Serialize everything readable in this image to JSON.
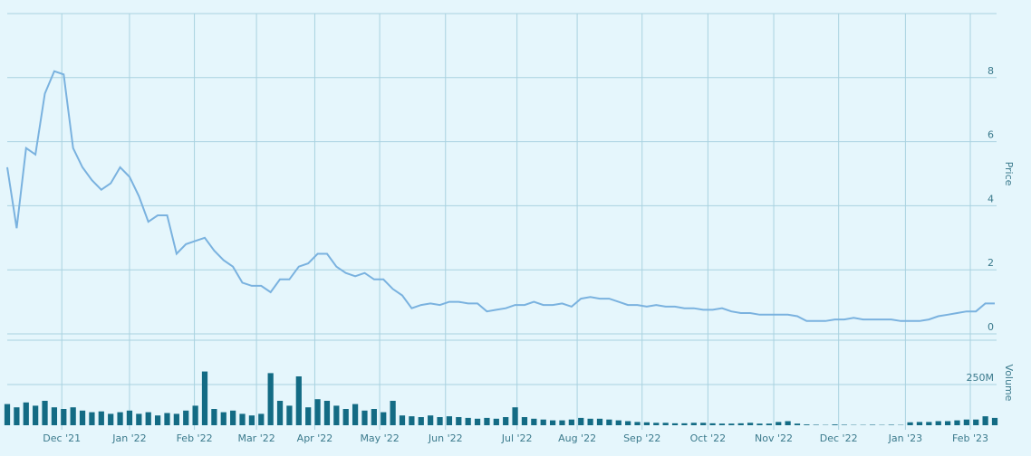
{
  "chart_data": [
    {
      "type": "line",
      "y_label": "Price",
      "color": "#7ab2df",
      "xlim": [
        0,
        105
      ],
      "ylim": [
        0,
        10
      ],
      "yticks": [
        0,
        2,
        4,
        6,
        8
      ],
      "grid": true,
      "values": [
        5.2,
        3.3,
        5.8,
        5.6,
        7.5,
        8.2,
        8.1,
        5.8,
        5.2,
        4.8,
        4.5,
        4.7,
        5.2,
        4.9,
        4.3,
        3.5,
        3.7,
        3.7,
        2.5,
        2.8,
        2.9,
        3.0,
        2.6,
        2.3,
        2.1,
        1.6,
        1.5,
        1.5,
        1.3,
        1.7,
        1.7,
        2.1,
        2.2,
        2.5,
        2.5,
        2.1,
        1.9,
        1.8,
        1.9,
        1.7,
        1.7,
        1.4,
        1.2,
        0.8,
        0.9,
        0.95,
        0.9,
        1.0,
        1.0,
        0.95,
        0.95,
        0.7,
        0.75,
        0.8,
        0.9,
        0.9,
        1.0,
        0.9,
        0.9,
        0.95,
        0.85,
        1.1,
        1.15,
        1.1,
        1.1,
        1.0,
        0.9,
        0.9,
        0.85,
        0.9,
        0.85,
        0.85,
        0.8,
        0.8,
        0.75,
        0.75,
        0.8,
        0.7,
        0.65,
        0.65,
        0.6,
        0.6,
        0.6,
        0.6,
        0.55,
        0.4,
        0.4,
        0.4,
        0.45,
        0.45,
        0.5,
        0.45,
        0.45,
        0.45,
        0.45,
        0.4,
        0.4,
        0.4,
        0.45,
        0.55,
        0.6,
        0.65,
        0.7,
        0.7,
        0.95,
        0.95
      ]
    },
    {
      "type": "bar",
      "y_label": "Volume",
      "color": "#136b84",
      "xlim": [
        0,
        105
      ],
      "ylim": [
        0,
        500000000
      ],
      "yticks": [
        {
          "value": 250000000,
          "label": "250M"
        }
      ],
      "grid": true,
      "xticks": [
        {
          "value": 5.8,
          "label": "Dec '21"
        },
        {
          "value": 13.0,
          "label": "Jan '22"
        },
        {
          "value": 19.9,
          "label": "Feb '22"
        },
        {
          "value": 26.5,
          "label": "Mar '22"
        },
        {
          "value": 32.7,
          "label": "Apr '22"
        },
        {
          "value": 39.6,
          "label": "May '22"
        },
        {
          "value": 46.6,
          "label": "Jun '22"
        },
        {
          "value": 54.2,
          "label": "Jul '22"
        },
        {
          "value": 60.6,
          "label": "Aug '22"
        },
        {
          "value": 67.5,
          "label": "Sep '22"
        },
        {
          "value": 74.5,
          "label": "Oct '22"
        },
        {
          "value": 81.5,
          "label": "Nov '22"
        },
        {
          "value": 88.4,
          "label": "Dec '22"
        },
        {
          "value": 95.5,
          "label": "Jan '23"
        },
        {
          "value": 102.4,
          "label": "Feb '23"
        }
      ],
      "values": [
        130000000,
        110000000,
        140000000,
        120000000,
        150000000,
        110000000,
        100000000,
        110000000,
        90000000,
        80000000,
        85000000,
        70000000,
        80000000,
        90000000,
        70000000,
        80000000,
        60000000,
        75000000,
        70000000,
        90000000,
        120000000,
        330000000,
        100000000,
        80000000,
        90000000,
        70000000,
        60000000,
        70000000,
        320000000,
        150000000,
        120000000,
        300000000,
        110000000,
        160000000,
        150000000,
        120000000,
        100000000,
        130000000,
        90000000,
        100000000,
        80000000,
        150000000,
        60000000,
        55000000,
        50000000,
        60000000,
        50000000,
        55000000,
        50000000,
        45000000,
        40000000,
        45000000,
        40000000,
        50000000,
        110000000,
        50000000,
        40000000,
        35000000,
        30000000,
        30000000,
        35000000,
        45000000,
        40000000,
        40000000,
        35000000,
        30000000,
        25000000,
        20000000,
        18000000,
        15000000,
        15000000,
        12000000,
        12000000,
        15000000,
        15000000,
        12000000,
        10000000,
        10000000,
        12000000,
        15000000,
        10000000,
        10000000,
        20000000,
        25000000,
        10000000,
        5000000,
        3000000,
        2000000,
        5000000,
        3000000,
        2000000,
        2000000,
        3000000,
        2000000,
        3000000,
        2000000,
        18000000,
        20000000,
        20000000,
        25000000,
        25000000,
        30000000,
        35000000,
        35000000,
        55000000,
        45000000
      ]
    }
  ]
}
